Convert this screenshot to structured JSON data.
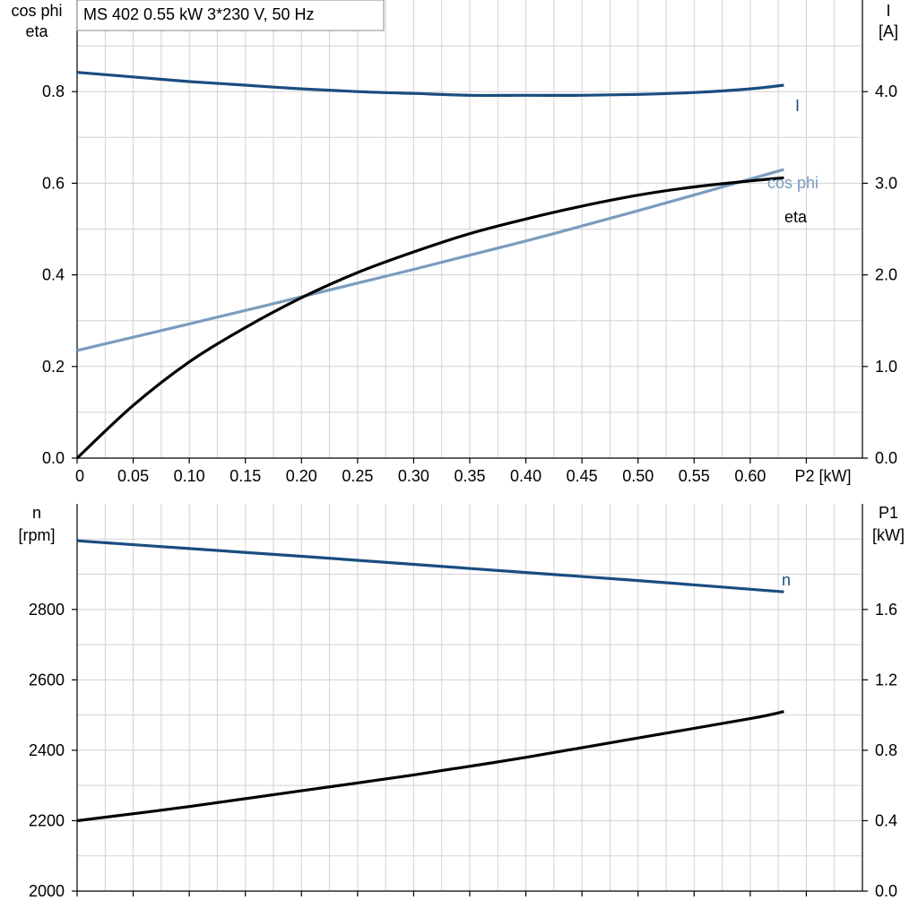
{
  "title_box": "MS 402   0.55 kW   3*230 V, 50 Hz",
  "colors": {
    "I": "#1a4d80",
    "cos_phi": "#7a9cbf",
    "eta": "#000000",
    "n": "#1a4d80",
    "P1": "#000000",
    "grid": "#d2d2d2"
  },
  "chart_data": [
    {
      "type": "line",
      "panel": "top",
      "xlabel": "P2 [kW]",
      "ylabel_left": [
        "cos phi",
        "eta"
      ],
      "ylabel_right": [
        "I",
        "[A]"
      ],
      "xlim": [
        0,
        0.7
      ],
      "ylim_left": [
        0,
        1.0
      ],
      "ylim_right": [
        0,
        5.0
      ],
      "x_ticks": [
        0,
        0.05,
        0.1,
        0.15,
        0.2,
        0.25,
        0.3,
        0.35,
        0.4,
        0.45,
        0.5,
        0.55,
        0.6
      ],
      "x_tick_labels": [
        "0",
        "0.05",
        "0.10",
        "0.15",
        "0.20",
        "0.25",
        "0.30",
        "0.35",
        "0.40",
        "0.45",
        "0.50",
        "0.55",
        "0.60"
      ],
      "y_left_ticks": [
        0,
        0.2,
        0.4,
        0.6,
        0.8
      ],
      "y_left_tick_labels": [
        "0.0",
        "0.2",
        "0.4",
        "0.6",
        "0.8"
      ],
      "y_right_ticks": [
        0,
        1,
        2,
        3,
        4
      ],
      "y_right_tick_labels": [
        "0.0",
        "1.0",
        "2.0",
        "3.0",
        "4.0"
      ],
      "grid": true,
      "series": [
        {
          "name": "I",
          "axis": "right",
          "x": [
            0,
            0.05,
            0.1,
            0.15,
            0.2,
            0.25,
            0.3,
            0.35,
            0.4,
            0.45,
            0.5,
            0.55,
            0.6,
            0.63
          ],
          "y": [
            4.21,
            4.16,
            4.11,
            4.07,
            4.03,
            4.0,
            3.98,
            3.96,
            3.96,
            3.96,
            3.97,
            3.99,
            4.03,
            4.07
          ]
        },
        {
          "name": "cos phi",
          "axis": "left",
          "x": [
            0,
            0.1,
            0.2,
            0.3,
            0.4,
            0.5,
            0.63
          ],
          "y": [
            0.235,
            0.293,
            0.352,
            0.412,
            0.474,
            0.54,
            0.63
          ]
        },
        {
          "name": "eta",
          "axis": "left",
          "x": [
            0,
            0.05,
            0.1,
            0.15,
            0.2,
            0.25,
            0.3,
            0.35,
            0.4,
            0.45,
            0.5,
            0.55,
            0.6,
            0.63
          ],
          "y": [
            0.0,
            0.115,
            0.21,
            0.285,
            0.35,
            0.405,
            0.45,
            0.49,
            0.522,
            0.55,
            0.574,
            0.592,
            0.605,
            0.612
          ]
        }
      ]
    },
    {
      "type": "line",
      "panel": "bottom",
      "xlim": [
        0,
        0.7
      ],
      "ylabel_left": [
        "n",
        "[rpm]"
      ],
      "ylabel_right": [
        "P1",
        "[kW]"
      ],
      "ylim_left": [
        2000,
        3100
      ],
      "ylim_right": [
        0,
        2.2
      ],
      "y_left_ticks": [
        2000,
        2200,
        2400,
        2600,
        2800
      ],
      "y_left_tick_labels": [
        "2000",
        "2200",
        "2400",
        "2600",
        "2800"
      ],
      "y_right_ticks": [
        0,
        0.4,
        0.8,
        1.2,
        1.6
      ],
      "y_right_tick_labels": [
        "0.0",
        "0.4",
        "0.8",
        "1.2",
        "1.6"
      ],
      "grid": true,
      "series": [
        {
          "name": "n",
          "axis": "left",
          "x": [
            0,
            0.1,
            0.2,
            0.3,
            0.4,
            0.5,
            0.63
          ],
          "y": [
            2995,
            2973,
            2951,
            2928,
            2905,
            2882,
            2850
          ]
        },
        {
          "name": "",
          "axis": "right",
          "x": [
            0,
            0.1,
            0.2,
            0.3,
            0.4,
            0.5,
            0.6,
            0.63
          ],
          "y": [
            0.4,
            0.48,
            0.57,
            0.66,
            0.76,
            0.87,
            0.98,
            1.02
          ]
        }
      ]
    }
  ]
}
